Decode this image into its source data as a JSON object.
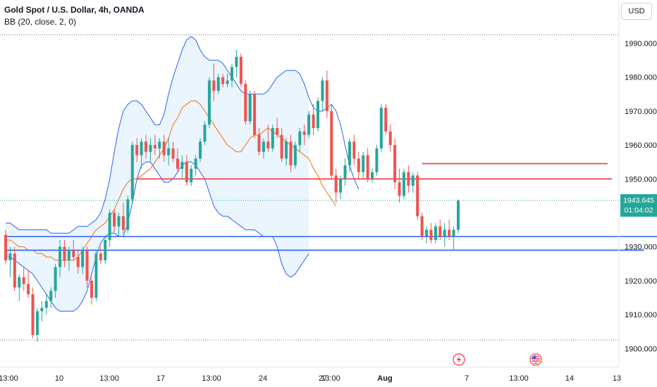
{
  "legend": {
    "symbol": "Gold Spot / U.S. Dollar, 4h, OANDA",
    "indicator": "BB (20, close, 2, 0)"
  },
  "currency_button": "USD",
  "price_tag": {
    "price": "1943.645",
    "countdown": "01:04:02"
  },
  "colors": {
    "up": "#26a69a",
    "down": "#ef5350",
    "bb_band": "#2962ff",
    "bb_basis": "#ff6d00",
    "bb_fill": "#e3f2fd",
    "resistance": "#f23645",
    "support": "#2962ff"
  },
  "chart_data": {
    "type": "candlestick",
    "y_axis": {
      "ylim": [
        1896,
        2000
      ],
      "ticks": [
        1990,
        1980,
        1970,
        1960,
        1950,
        1940,
        1930,
        1920,
        1910,
        1900
      ],
      "tick_labels": [
        "1990.000",
        "1980.000",
        "1970.000",
        "1960.000",
        "1950.000",
        "1940.000",
        "1930.000",
        "1920.000",
        "1910.000",
        "1900.000"
      ]
    },
    "x_axis": {
      "tick_labels": [
        "13:00",
        "10",
        "13:00",
        "17",
        "13:00",
        "24",
        "27",
        "13:00",
        "Aug",
        "7",
        "13:00",
        "14",
        "13"
      ]
    },
    "last_price": 1943.645,
    "candles": [
      [
        1933.5,
        1935,
        1925,
        1926
      ],
      [
        1926,
        1930,
        1921,
        1928
      ],
      [
        1928,
        1930,
        1917,
        1918
      ],
      [
        1918,
        1922,
        1914,
        1921
      ],
      [
        1921,
        1924,
        1917,
        1919
      ],
      [
        1919,
        1923,
        1915,
        1916
      ],
      [
        1916,
        1918,
        1903,
        1904
      ],
      [
        1904,
        1912,
        1902,
        1911
      ],
      [
        1911,
        1914,
        1908,
        1912
      ],
      [
        1912,
        1916,
        1910,
        1914
      ],
      [
        1914,
        1918,
        1912,
        1917
      ],
      [
        1917,
        1925,
        1915,
        1924
      ],
      [
        1924,
        1932,
        1921,
        1930
      ],
      [
        1930,
        1932,
        1924,
        1926
      ],
      [
        1926,
        1930,
        1923,
        1929
      ],
      [
        1929,
        1932,
        1926,
        1927
      ],
      [
        1927,
        1929,
        1922,
        1924
      ],
      [
        1924,
        1930,
        1922,
        1929
      ],
      [
        1929,
        1930,
        1918,
        1920
      ],
      [
        1920,
        1921,
        1913,
        1915
      ],
      [
        1915,
        1929,
        1914,
        1928
      ],
      [
        1928,
        1930,
        1925,
        1926
      ],
      [
        1926,
        1933,
        1925,
        1932
      ],
      [
        1932,
        1941,
        1930,
        1940
      ],
      [
        1940,
        1941,
        1934,
        1936
      ],
      [
        1936,
        1940,
        1933,
        1939
      ],
      [
        1939,
        1943,
        1934,
        1935
      ],
      [
        1935,
        1945,
        1934,
        1944
      ],
      [
        1944,
        1961,
        1943,
        1960
      ],
      [
        1960,
        1962,
        1955,
        1957
      ],
      [
        1957,
        1962,
        1953,
        1961
      ],
      [
        1961,
        1963,
        1956,
        1958
      ],
      [
        1958,
        1962,
        1955,
        1960
      ],
      [
        1960,
        1963,
        1957,
        1959
      ],
      [
        1959,
        1962,
        1956,
        1961
      ],
      [
        1961,
        1963,
        1955,
        1957
      ],
      [
        1957,
        1962,
        1954,
        1959
      ],
      [
        1959,
        1961,
        1955,
        1956
      ],
      [
        1956,
        1959,
        1952,
        1953
      ],
      [
        1953,
        1957,
        1950,
        1955
      ],
      [
        1955,
        1957,
        1948,
        1949
      ],
      [
        1949,
        1954,
        1948,
        1953
      ],
      [
        1953,
        1957,
        1951,
        1956
      ],
      [
        1956,
        1962,
        1955,
        1961
      ],
      [
        1961,
        1967,
        1960,
        1966
      ],
      [
        1966,
        1980,
        1965,
        1979
      ],
      [
        1979,
        1984,
        1973,
        1976
      ],
      [
        1976,
        1981,
        1975,
        1980
      ],
      [
        1980,
        1981,
        1977,
        1978
      ],
      [
        1978,
        1981,
        1977,
        1979
      ],
      [
        1979,
        1984,
        1977,
        1983
      ],
      [
        1983,
        1988,
        1980,
        1986
      ],
      [
        1986,
        1987,
        1977,
        1978
      ],
      [
        1978,
        1979,
        1966,
        1967
      ],
      [
        1967,
        1976,
        1966,
        1975
      ],
      [
        1975,
        1976,
        1962,
        1963
      ],
      [
        1963,
        1965,
        1957,
        1958
      ],
      [
        1958,
        1962,
        1956,
        1961
      ],
      [
        1961,
        1966,
        1958,
        1959
      ],
      [
        1959,
        1966,
        1958,
        1965
      ],
      [
        1965,
        1968,
        1962,
        1963
      ],
      [
        1963,
        1965,
        1955,
        1956
      ],
      [
        1956,
        1962,
        1954,
        1961
      ],
      [
        1961,
        1963,
        1952,
        1954
      ],
      [
        1954,
        1961,
        1953,
        1960
      ],
      [
        1960,
        1965,
        1958,
        1964
      ],
      [
        1964,
        1966,
        1960,
        1963
      ],
      [
        1963,
        1970,
        1962,
        1969
      ],
      [
        1969,
        1972,
        1963,
        1965
      ],
      [
        1965,
        1974,
        1964,
        1973
      ],
      [
        1973,
        1980,
        1970,
        1979
      ],
      [
        1979,
        1982,
        1968,
        1970
      ],
      [
        1970,
        1972,
        1950,
        1951
      ],
      [
        1951,
        1953,
        1943,
        1946
      ],
      [
        1946,
        1951,
        1944,
        1950
      ],
      [
        1950,
        1956,
        1948,
        1954
      ],
      [
        1954,
        1962,
        1952,
        1961
      ],
      [
        1961,
        1963,
        1954,
        1956
      ],
      [
        1956,
        1958,
        1950,
        1952
      ],
      [
        1952,
        1958,
        1950,
        1957
      ],
      [
        1957,
        1959,
        1949,
        1950
      ],
      [
        1950,
        1953,
        1949,
        1952
      ],
      [
        1952,
        1960,
        1951,
        1959
      ],
      [
        1959,
        1972,
        1958,
        1971
      ],
      [
        1971,
        1972,
        1963,
        1964
      ],
      [
        1964,
        1966,
        1958,
        1960
      ],
      [
        1960,
        1962,
        1947,
        1949
      ],
      [
        1949,
        1953,
        1943,
        1945
      ],
      [
        1945,
        1953,
        1944,
        1952
      ],
      [
        1952,
        1954,
        1946,
        1948
      ],
      [
        1948,
        1952,
        1946,
        1951
      ],
      [
        1951,
        1952,
        1938,
        1939
      ],
      [
        1939,
        1940,
        1932,
        1933
      ],
      [
        1933,
        1936,
        1931,
        1935
      ],
      [
        1935,
        1937,
        1931,
        1932
      ],
      [
        1932,
        1937,
        1931,
        1936
      ],
      [
        1936,
        1938,
        1932,
        1933
      ],
      [
        1933,
        1937,
        1930,
        1935
      ],
      [
        1935,
        1938,
        1932,
        1933
      ],
      [
        1933,
        1936,
        1929,
        1935
      ],
      [
        1935,
        1944,
        1934,
        1943.645
      ]
    ],
    "bb_upper": [
      1937,
      1937,
      1936,
      1935,
      1935,
      1935,
      1935,
      1935,
      1935,
      1935,
      1934,
      1934,
      1934,
      1934,
      1934,
      1935,
      1936,
      1936,
      1936,
      1937,
      1938,
      1940,
      1944,
      1950,
      1958,
      1965,
      1970,
      1972,
      1973,
      1973,
      1972,
      1970,
      1968,
      1966,
      1966,
      1969,
      1975,
      1980,
      1984,
      1988,
      1991,
      1992,
      1991,
      1988,
      1986,
      1985,
      1985,
      1985,
      1984,
      1982,
      1980,
      1978,
      1976,
      1975,
      1975,
      1975,
      1975,
      1975,
      1976,
      1978,
      1980,
      1981,
      1982,
      1982,
      1982,
      1981,
      1978,
      1974,
      1971,
      1970,
      1970,
      1971,
      1972,
      1970,
      1966,
      1960,
      1954,
      1950,
      1947
    ],
    "bb_basis": [
      1932,
      1932,
      1931,
      1930,
      1930,
      1929,
      1929,
      1928,
      1928,
      1927,
      1927,
      1926,
      1926,
      1926,
      1926,
      1926,
      1927,
      1929,
      1931,
      1933,
      1935,
      1936,
      1937,
      1939,
      1941,
      1944,
      1947,
      1949,
      1950,
      1950,
      1951,
      1952,
      1953,
      1955,
      1957,
      1959,
      1962,
      1966,
      1968,
      1971,
      1972,
      1973,
      1973,
      1972,
      1970,
      1968,
      1966,
      1964,
      1962,
      1960,
      1959,
      1958,
      1958,
      1960,
      1962,
      1963,
      1963,
      1964,
      1965,
      1964,
      1963,
      1962,
      1961,
      1960,
      1959,
      1958,
      1957,
      1956,
      1953,
      1951,
      1948,
      1946,
      1944,
      1942
    ],
    "bb_lower": [
      1927,
      1927,
      1926,
      1925,
      1924,
      1923,
      1922,
      1920,
      1918,
      1916,
      1914,
      1912,
      1911,
      1911,
      1911,
      1911,
      1912,
      1914,
      1917,
      1922,
      1927,
      1931,
      1933,
      1934,
      1934,
      1933,
      1933,
      1937,
      1943,
      1950,
      1954,
      1955,
      1955,
      1953,
      1951,
      1949,
      1949,
      1950,
      1952,
      1954,
      1955,
      1955,
      1954,
      1952,
      1950,
      1946,
      1942,
      1940,
      1939,
      1939,
      1938,
      1937,
      1936,
      1935,
      1935,
      1935,
      1934,
      1933,
      1933,
      1933,
      1930,
      1925,
      1922,
      1921,
      1922,
      1924,
      1926,
      1928
    ],
    "horizontal_levels": [
      {
        "kind": "resistance",
        "value": 1950,
        "x_from_bar": 29,
        "x_to_bar": 134
      },
      {
        "kind": "resistance",
        "value": 1954.5,
        "x_from_bar": 92,
        "x_to_bar": 133
      },
      {
        "kind": "support",
        "value": 1933,
        "x_from_bar": 0,
        "x_to_bar": 151
      },
      {
        "kind": "support",
        "value": 1929,
        "x_from_bar": 0,
        "x_to_bar": 141
      }
    ],
    "grid": false
  }
}
